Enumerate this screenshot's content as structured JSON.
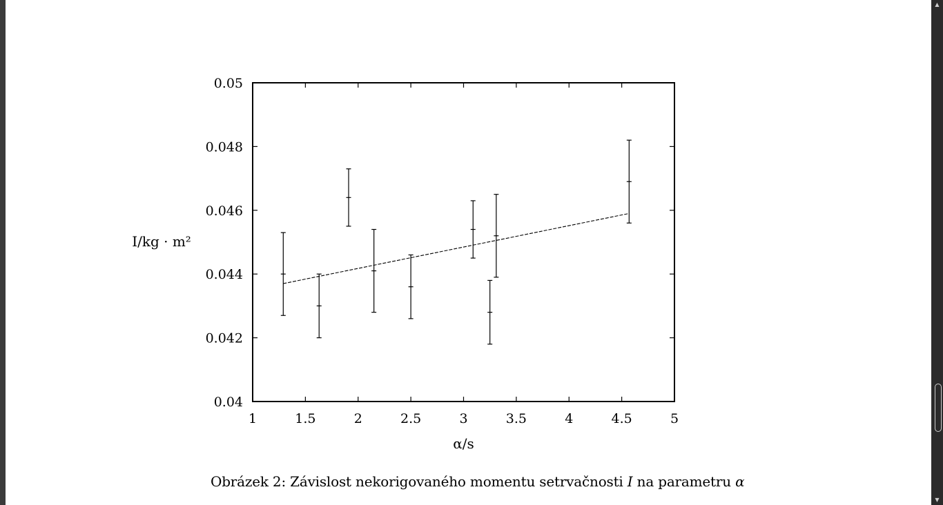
{
  "caption": {
    "prefix": "Obrázek 2: Závislost nekorigovaného momentu setrvačnosti ",
    "symbol_i": "I",
    "middle": " na parametru ",
    "symbol_alpha": "α"
  },
  "scrollbar": {
    "up_icon": "triangle-up-icon",
    "down_icon": "triangle-down-icon"
  },
  "chart_data": {
    "type": "scatter",
    "title": "",
    "xlabel": "α/s",
    "ylabel": "I/kg · m²",
    "xlim": [
      1,
      5
    ],
    "ylim": [
      0.04,
      0.05
    ],
    "xticks": [
      "1",
      "1.5",
      "2",
      "2.5",
      "3",
      "3.5",
      "4",
      "4.5",
      "5"
    ],
    "yticks": [
      "0.04",
      "0.042",
      "0.044",
      "0.046",
      "0.048",
      "0.05"
    ],
    "grid": false,
    "series": [
      {
        "style": "errorbars",
        "points": [
          {
            "x": 1.29,
            "y": 0.044,
            "ylow": 0.0427,
            "yhigh": 0.0453
          },
          {
            "x": 1.63,
            "y": 0.043,
            "ylow": 0.042,
            "yhigh": 0.044
          },
          {
            "x": 1.91,
            "y": 0.0464,
            "ylow": 0.0455,
            "yhigh": 0.0473
          },
          {
            "x": 2.15,
            "y": 0.0441,
            "ylow": 0.0428,
            "yhigh": 0.0454
          },
          {
            "x": 2.5,
            "y": 0.0436,
            "ylow": 0.0426,
            "yhigh": 0.0446
          },
          {
            "x": 3.09,
            "y": 0.0454,
            "ylow": 0.0445,
            "yhigh": 0.0463
          },
          {
            "x": 3.25,
            "y": 0.0428,
            "ylow": 0.0418,
            "yhigh": 0.0438
          },
          {
            "x": 3.31,
            "y": 0.0452,
            "ylow": 0.0439,
            "yhigh": 0.0465
          },
          {
            "x": 4.57,
            "y": 0.0469,
            "ylow": 0.0456,
            "yhigh": 0.0482
          }
        ]
      },
      {
        "style": "dashed-fit-line",
        "x": [
          1.29,
          4.57
        ],
        "y": [
          0.0437,
          0.0459
        ]
      }
    ]
  }
}
